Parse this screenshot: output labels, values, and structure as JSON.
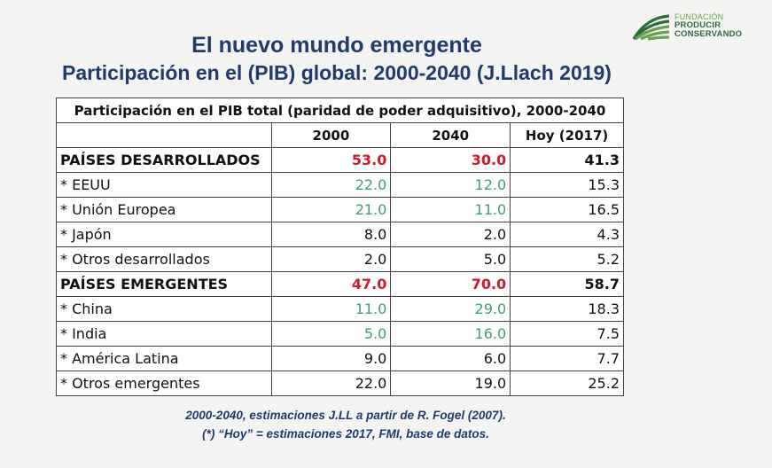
{
  "header": {
    "title_line1": "El nuevo mundo emergente",
    "title_line2": "Participación en el (PIB) global: 2000-2040  (J.Llach 2019)"
  },
  "logo": {
    "line1": "FUNDACIÓN",
    "line2": "PRODUCIR",
    "line3": "CONSERVANDO",
    "icon": "field-furrows-icon",
    "colors": {
      "dark_green": "#2c6e3b",
      "light_green": "#6aa04e"
    }
  },
  "table": {
    "caption": "Participación en el PIB total (paridad de poder adquisitivo), 2000-2040",
    "columns": [
      "2000",
      "2040",
      "Hoy (2017)"
    ],
    "rows": [
      {
        "label": "PAÍSES DESARROLLADOS",
        "v2000": "53.0",
        "v2040": "30.0",
        "vHoy": "41.3"
      },
      {
        "label": "* EEUU",
        "v2000": "22.0",
        "v2040": "12.0",
        "vHoy": "15.3"
      },
      {
        "label": "* Unión Europea",
        "v2000": "21.0",
        "v2040": "11.0",
        "vHoy": "16.5"
      },
      {
        "label": "* Japón",
        "v2000": "8.0",
        "v2040": "2.0",
        "vHoy": "4.3"
      },
      {
        "label": "* Otros desarrollados",
        "v2000": "2.0",
        "v2040": "5.0",
        "vHoy": "5.2"
      },
      {
        "label": "PAÍSES EMERGENTES",
        "v2000": "47.0",
        "v2040": "70.0",
        "vHoy": "58.7"
      },
      {
        "label": "* China",
        "v2000": "11.0",
        "v2040": "29.0",
        "vHoy": "18.3"
      },
      {
        "label": "* India",
        "v2000": "5.0",
        "v2040": "16.0",
        "vHoy": "7.5"
      },
      {
        "label": "* América Latina",
        "v2000": "9.0",
        "v2040": "6.0",
        "vHoy": "7.7"
      },
      {
        "label": "* Otros emergentes",
        "v2000": "22.0",
        "v2040": "19.0",
        "vHoy": "25.2"
      }
    ],
    "colors": {
      "red": "#d0192b",
      "green": "#3aa36a",
      "text": "#111111"
    }
  },
  "footnotes": {
    "line1": "2000-2040, estimaciones J.LL  a partir de R. Fogel (2007).",
    "line2": "(*) “Hoy” = estimaciones 2017, FMI, base de datos."
  }
}
